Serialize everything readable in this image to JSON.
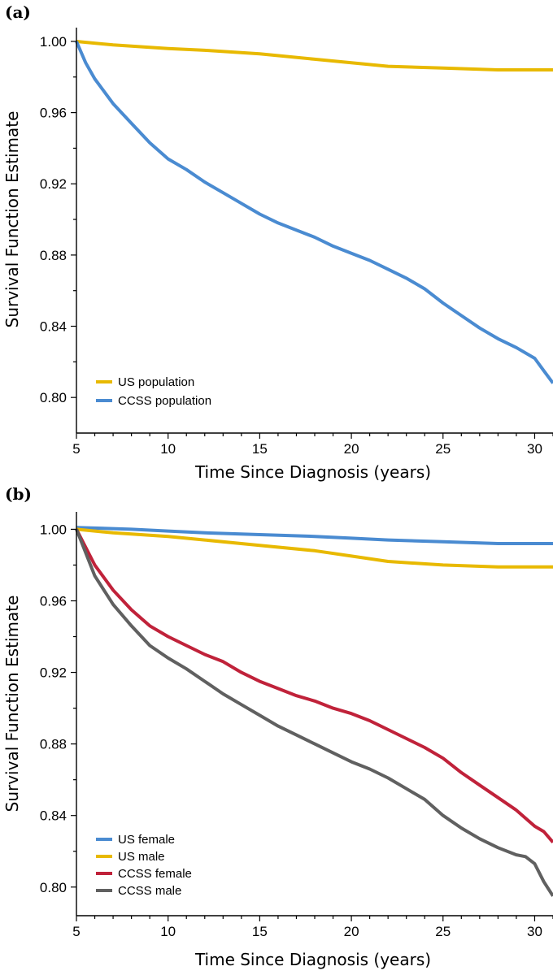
{
  "chart_data": [
    {
      "panel": "(a)",
      "type": "line",
      "xlabel": "Time Since Diagnosis (years)",
      "ylabel": "Survival Function Estimate",
      "xlim": [
        5,
        31
      ],
      "ylim": [
        0.78,
        1.005
      ],
      "xticks": [
        5,
        10,
        15,
        20,
        25,
        30
      ],
      "yticks": [
        0.8,
        0.84,
        0.88,
        0.92,
        0.96,
        1.0
      ],
      "ytick_labels": [
        "0.80",
        "0.84",
        "0.88",
        "0.92",
        "0.96",
        "1.00"
      ],
      "grid": false,
      "legend_position": "bottom-left",
      "series": [
        {
          "name": "US population",
          "color": "#E8B900",
          "x": [
            5,
            7,
            10,
            12,
            15,
            18,
            20,
            22,
            25,
            28,
            31
          ],
          "y": [
            1.0,
            0.998,
            0.996,
            0.995,
            0.993,
            0.99,
            0.988,
            0.986,
            0.985,
            0.984,
            0.984
          ]
        },
        {
          "name": "CCSS population",
          "color": "#4A8BD1",
          "x": [
            5,
            5.5,
            6,
            7,
            8,
            9,
            10,
            11,
            12,
            13,
            14,
            15,
            16,
            17,
            18,
            19,
            20,
            21,
            22,
            23,
            24,
            25,
            26,
            27,
            28,
            29,
            30,
            30.5,
            31
          ],
          "y": [
            1.0,
            0.988,
            0.979,
            0.965,
            0.954,
            0.943,
            0.934,
            0.928,
            0.921,
            0.915,
            0.909,
            0.903,
            0.898,
            0.894,
            0.89,
            0.885,
            0.881,
            0.877,
            0.872,
            0.867,
            0.861,
            0.853,
            0.846,
            0.839,
            0.833,
            0.828,
            0.822,
            0.815,
            0.808
          ]
        }
      ]
    },
    {
      "panel": "(b)",
      "type": "line",
      "xlabel": "Time Since Diagnosis (years)",
      "ylabel": "Survival Function Estimate",
      "xlim": [
        5,
        31
      ],
      "ylim": [
        0.784,
        1.007
      ],
      "xticks": [
        5,
        10,
        15,
        20,
        25,
        30
      ],
      "yticks": [
        0.8,
        0.84,
        0.88,
        0.92,
        0.96,
        1.0
      ],
      "ytick_labels": [
        "0.80",
        "0.84",
        "0.88",
        "0.92",
        "0.96",
        "1.00"
      ],
      "grid": false,
      "legend_position": "bottom-left",
      "series": [
        {
          "name": "US female",
          "color": "#4A8BD1",
          "x": [
            5,
            8,
            10,
            12,
            15,
            18,
            20,
            22,
            25,
            28,
            31
          ],
          "y": [
            1.001,
            1.0,
            0.999,
            0.998,
            0.997,
            0.996,
            0.995,
            0.994,
            0.993,
            0.992,
            0.992
          ]
        },
        {
          "name": "US male",
          "color": "#E8B900",
          "x": [
            5,
            7,
            10,
            12,
            15,
            18,
            20,
            22,
            25,
            28,
            31
          ],
          "y": [
            1.0,
            0.998,
            0.996,
            0.994,
            0.991,
            0.988,
            0.985,
            0.982,
            0.98,
            0.979,
            0.979
          ]
        },
        {
          "name": "CCSS female",
          "color": "#C0223A",
          "x": [
            5,
            6,
            7,
            8,
            9,
            10,
            11,
            12,
            13,
            14,
            15,
            16,
            17,
            18,
            19,
            20,
            21,
            22,
            23,
            24,
            25,
            26,
            27,
            28,
            29,
            30,
            30.5,
            31
          ],
          "y": [
            1.0,
            0.98,
            0.966,
            0.955,
            0.946,
            0.94,
            0.935,
            0.93,
            0.926,
            0.92,
            0.915,
            0.911,
            0.907,
            0.904,
            0.9,
            0.897,
            0.893,
            0.888,
            0.883,
            0.878,
            0.872,
            0.864,
            0.857,
            0.85,
            0.843,
            0.834,
            0.831,
            0.825
          ]
        },
        {
          "name": "CCSS male",
          "color": "#606060",
          "x": [
            5,
            6,
            7,
            8,
            9,
            10,
            11,
            12,
            13,
            14,
            15,
            16,
            17,
            18,
            19,
            20,
            21,
            22,
            23,
            24,
            25,
            26,
            27,
            28,
            29,
            29.5,
            30,
            30.5,
            31
          ],
          "y": [
            1.0,
            0.974,
            0.958,
            0.946,
            0.935,
            0.928,
            0.922,
            0.915,
            0.908,
            0.902,
            0.896,
            0.89,
            0.885,
            0.88,
            0.875,
            0.87,
            0.866,
            0.861,
            0.855,
            0.849,
            0.84,
            0.833,
            0.827,
            0.822,
            0.818,
            0.817,
            0.813,
            0.803,
            0.795
          ]
        }
      ]
    }
  ]
}
